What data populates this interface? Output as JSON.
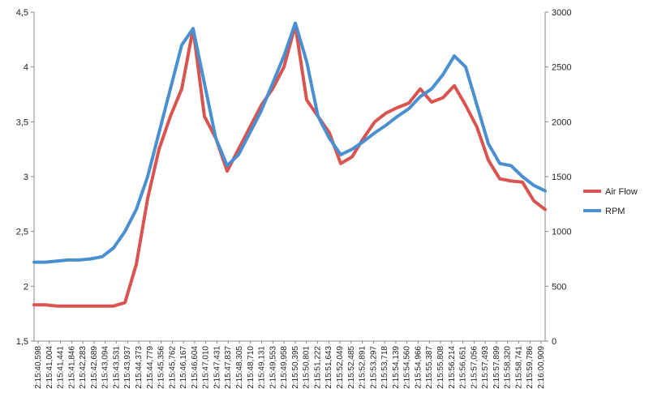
{
  "chart_data": {
    "type": "line",
    "grid": "none",
    "legend_position": "right",
    "left_axis": {
      "ylim": [
        1.5,
        4.5
      ],
      "ticks": [
        "1,5",
        "2",
        "2,5",
        "3",
        "3,5",
        "4",
        "4,5"
      ]
    },
    "right_axis": {
      "ylim": [
        0,
        3000
      ],
      "ticks": [
        "0",
        "500",
        "1000",
        "1500",
        "2000",
        "2500",
        "3000"
      ]
    },
    "x_tick_labels": [
      "2:15:40,598",
      "2:15:41,004",
      "2:15:41,441",
      "2:15:41,846",
      "2:15:42,283",
      "2:15:42,689",
      "2:15:43,094",
      "2:15:43,531",
      "2:15:43,937",
      "2:15:44,373",
      "2:15:44,779",
      "2:15:45,356",
      "2:15:45,762",
      "2:15:46,167",
      "2:15:46,604",
      "2:15:47,010",
      "2:15:47,431",
      "2:15:47,837",
      "2:15:48,305",
      "2:15:48,710",
      "2:15:49,131",
      "2:15:49,553",
      "2:15:49,958",
      "2:15:50,395",
      "2:15:50,801",
      "2:15:51,222",
      "2:15:51,643",
      "2:15:52,049",
      "2:15:52,485",
      "2:15:52,891",
      "2:15:53,297",
      "2:15:53,718",
      "2:15:54,139",
      "2:15:54,560",
      "2:15:54,966",
      "2:15:55,387",
      "2:15:55,808",
      "2:15:56,214",
      "2:15:56,651",
      "2:15:57,056",
      "2:15:57,493",
      "2:15:57,899",
      "2:15:58,320",
      "2:15:58,741",
      "2:15:59,786",
      "2:16:00,909"
    ],
    "series": [
      {
        "name": "Air Flow",
        "axis": "left",
        "color": "#d9534f",
        "values": [
          1.83,
          1.83,
          1.82,
          1.82,
          1.82,
          1.82,
          1.82,
          1.82,
          1.85,
          2.2,
          2.8,
          3.25,
          3.55,
          3.8,
          4.35,
          3.55,
          3.35,
          3.05,
          3.25,
          3.45,
          3.65,
          3.8,
          4.0,
          4.38,
          3.7,
          3.55,
          3.4,
          3.12,
          3.18,
          3.35,
          3.5,
          3.58,
          3.63,
          3.67,
          3.8,
          3.68,
          3.72,
          3.83,
          3.65,
          3.45,
          3.15,
          2.98,
          2.96,
          2.95,
          2.78,
          2.7
        ]
      },
      {
        "name": "RPM",
        "axis": "left",
        "color": "#4a8fd0",
        "values": [
          2.22,
          2.22,
          2.23,
          2.24,
          2.24,
          2.25,
          2.27,
          2.35,
          2.5,
          2.7,
          3.0,
          3.4,
          3.8,
          4.2,
          4.35,
          3.85,
          3.35,
          3.1,
          3.2,
          3.4,
          3.6,
          3.85,
          4.1,
          4.4,
          4.05,
          3.55,
          3.35,
          3.2,
          3.25,
          3.32,
          3.4,
          3.47,
          3.55,
          3.62,
          3.73,
          3.8,
          3.93,
          4.1,
          4.0,
          3.65,
          3.3,
          3.12,
          3.1,
          3.0,
          2.92,
          2.87
        ]
      }
    ]
  }
}
